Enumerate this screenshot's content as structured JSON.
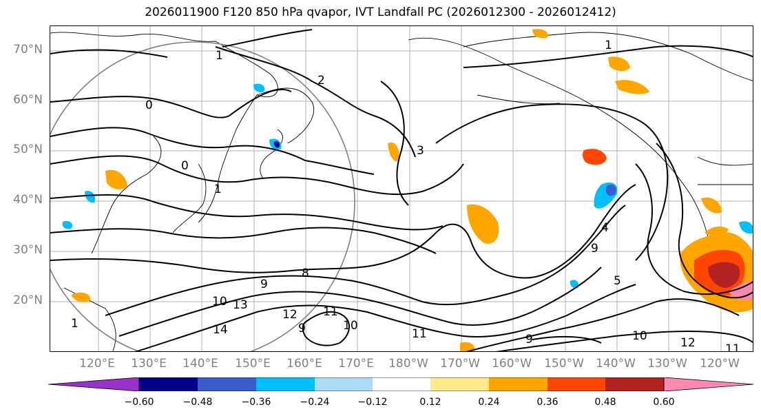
{
  "title": "2026011900 F120 850 hPa qvapor, IVT Landfall PC (2026012300 - 2026012412)",
  "map": {
    "lat_labels": [
      "70°N",
      "60°N",
      "50°N",
      "40°N",
      "30°N",
      "20°N"
    ],
    "lon_labels": [
      "120°E",
      "130°E",
      "140°E",
      "150°E",
      "160°E",
      "170°E",
      "180°W",
      "170°W",
      "160°W",
      "150°W",
      "140°W",
      "130°W",
      "120°W"
    ],
    "contour_labels": [
      "1",
      "1",
      "2",
      "0",
      "0",
      "3",
      "1",
      "9",
      "8",
      "10",
      "13",
      "14",
      "12",
      "11",
      "10",
      "11",
      "9",
      "4",
      "9",
      "5",
      "10",
      "12",
      "11",
      "9",
      "1"
    ]
  },
  "colorbar": {
    "ticks": [
      "−0.60",
      "−0.48",
      "−0.36",
      "−0.24",
      "−0.12",
      "0.12",
      "0.24",
      "0.36",
      "0.48",
      "0.60"
    ],
    "colors": [
      "#9932cc",
      "#00008b",
      "#3a5ccc",
      "#00bfff",
      "#aedcf8",
      "#ffffff",
      "#ffe98a",
      "#ffa500",
      "#ff4500",
      "#b22222",
      "#ff88b0",
      "#ffa0c8"
    ]
  }
}
